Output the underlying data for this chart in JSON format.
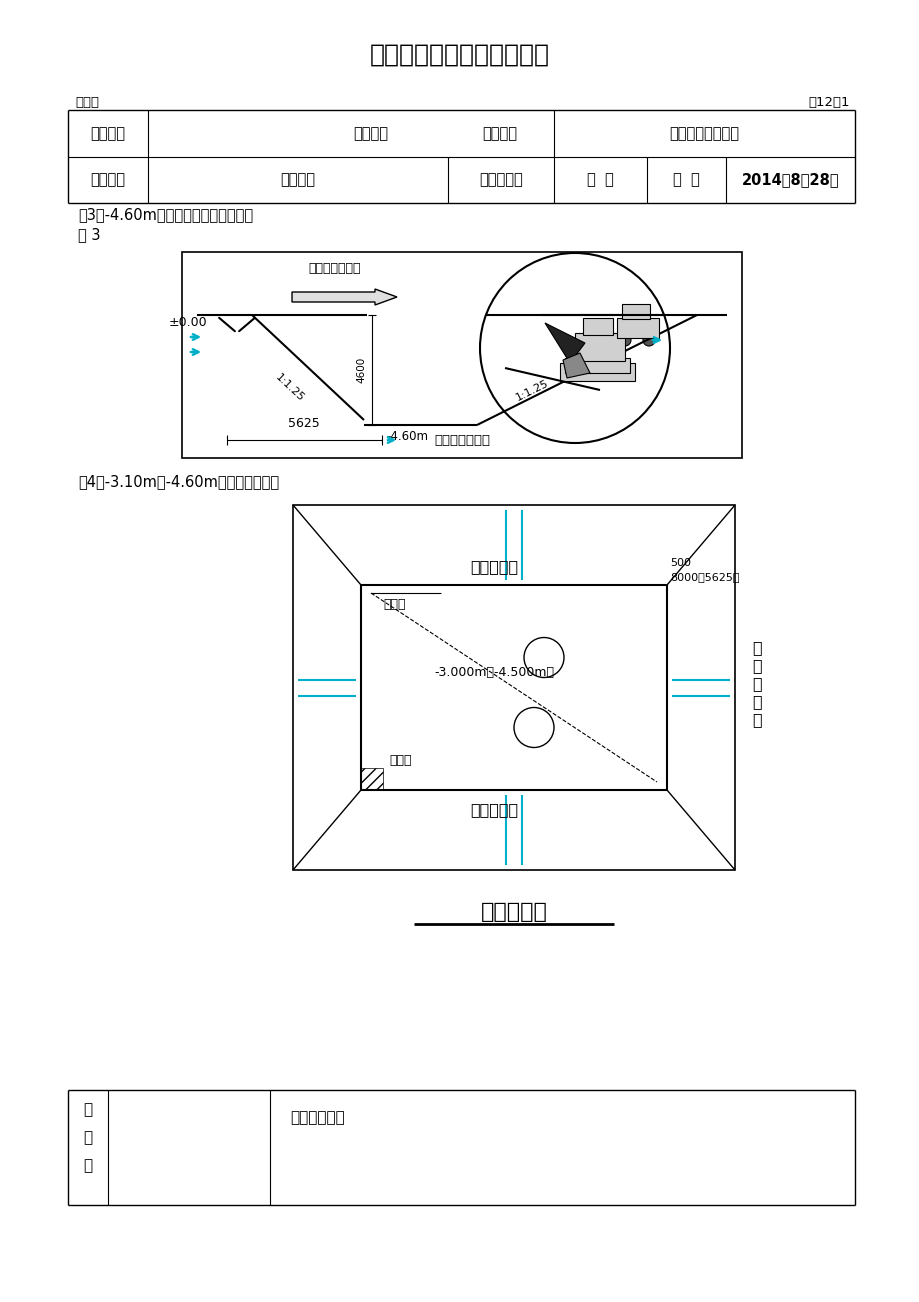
{
  "title": "土方开挖施工技术交底记录",
  "biaohao": "编号：",
  "biao12": "表12－1",
  "row1_col1": "工程名称",
  "row1_col3": "施工部位",
  "row1_col4": "基础承台土方开挖",
  "row2_col1": "施工图号",
  "row2_col2": "施工班组",
  "row2_col3": "土建施工队",
  "row2_col4": "日  期",
  "row2_col5": "2014年8月28日",
  "fig3_caption": "图3：-4.60m承台基坑放坡开挖示意图",
  "fig3_label": "图 3",
  "fig4_caption": "图4：-3.10m、-4.60m基坑开挖平面图",
  "label_pm000": "±0.00",
  "label_4600": "4600",
  "label_460m": "-4.60m",
  "label_1125a": "1:1.25",
  "label_1125b": "1:1.25",
  "label_jwtjt": "挖掘机后退挖土",
  "label_5625": "5625",
  "label_fbkwsyt": "放坡开挖示意图",
  "label_bpkdx_top": "边坡坑底线",
  "label_bpkdx_bot": "边坡坑底线",
  "label_bpkkx": "边坡坑口线",
  "label_bpkkx_chars": [
    "边",
    "坡",
    "坑",
    "口",
    "线"
  ],
  "label_psgjg": "排水沟",
  "label_jsq": "集水坑",
  "label_3000": "-3.000m（-4.500m）",
  "label_8000": "8000（5625）",
  "label_50": "500",
  "label_kwpmtu": "开挖平面图",
  "label_jiaodi": "交底人",
  "label_jieshou": "接受交底人：",
  "bg_color": "#ffffff",
  "line_color": "#000000",
  "cyan_color": "#00b0c8"
}
